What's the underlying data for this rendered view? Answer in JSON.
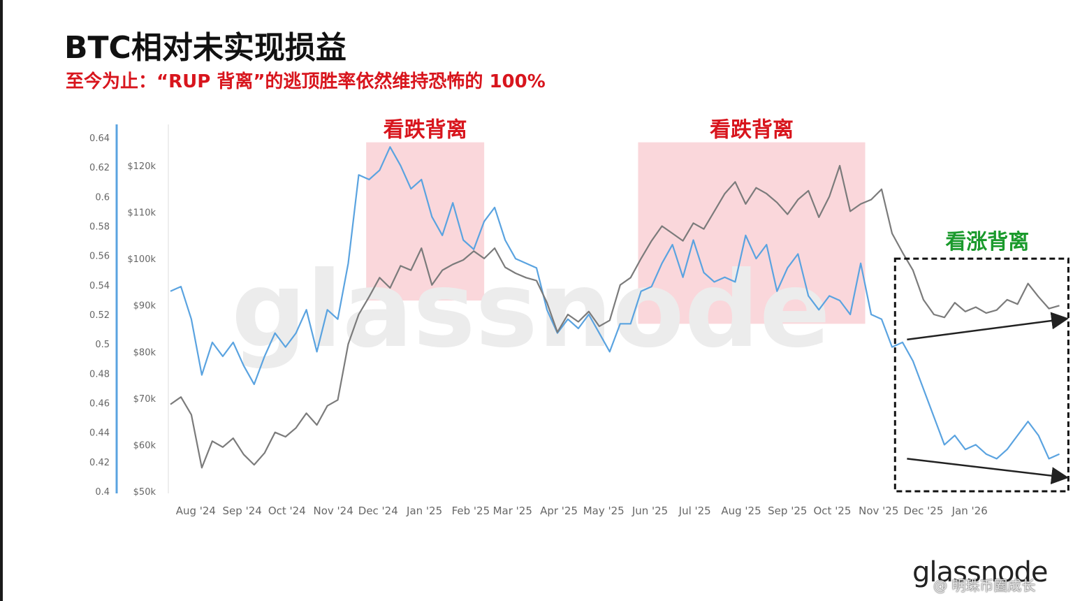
{
  "title": "BTC相对未实现损益",
  "subtitle": "至今为止：“RUP 背离”的逃顶胜率依然维持恐怖的 100%",
  "watermark": "glassnode",
  "brand": "glassnode",
  "credit": "@ 明珠币圈成长",
  "colors": {
    "price_line": "#5aa3e0",
    "rup_line": "#7b7b7b",
    "bear_zone": "#f8c9cf",
    "annotation_red": "#d8151d",
    "annotation_green": "#1a9a2c",
    "axis_accent": "#5aa3e0"
  },
  "chart_data": {
    "type": "line",
    "title": "BTC相对未实现损益",
    "x": [
      "Aug '24",
      "Sep '24",
      "Oct '24",
      "Nov '24",
      "Dec '24",
      "Jan '25",
      "Feb '25",
      "Mar '25",
      "Apr '25",
      "May '25",
      "Jun '25",
      "Jul '25",
      "Aug '25",
      "Sep '25",
      "Oct '25",
      "Nov '25",
      "Dec '25",
      "Jan '26"
    ],
    "y_left": {
      "ticks": [
        "0.64",
        "0.62",
        "0.6",
        "0.58",
        "0.56",
        "0.54",
        "0.52",
        "0.5",
        "0.48",
        "0.46",
        "0.44",
        "0.42",
        "0.4"
      ],
      "ylim": [
        0.4,
        0.64
      ]
    },
    "y_right": {
      "ticks": [
        "$120k",
        "$110k",
        "$100k",
        "$90k",
        "$80k",
        "$70k",
        "$60k",
        "$50k"
      ],
      "ylim": [
        50000,
        126000
      ]
    },
    "series": [
      {
        "color": "#5aa3e0",
        "axis": "price",
        "points": [
          [
            "2024-07-15",
            93000
          ],
          [
            "2024-07-22",
            94000
          ],
          [
            "2024-07-29",
            87000
          ],
          [
            "2024-08-05",
            75000
          ],
          [
            "2024-08-12",
            82000
          ],
          [
            "2024-08-19",
            79000
          ],
          [
            "2024-08-26",
            82000
          ],
          [
            "2024-09-02",
            77000
          ],
          [
            "2024-09-09",
            73000
          ],
          [
            "2024-09-16",
            79000
          ],
          [
            "2024-09-23",
            84000
          ],
          [
            "2024-09-30",
            81000
          ],
          [
            "2024-10-07",
            84000
          ],
          [
            "2024-10-14",
            89000
          ],
          [
            "2024-10-21",
            80000
          ],
          [
            "2024-10-28",
            89000
          ],
          [
            "2024-11-04",
            87000
          ],
          [
            "2024-11-11",
            99000
          ],
          [
            "2024-11-18",
            118000
          ],
          [
            "2024-11-25",
            117000
          ],
          [
            "2024-12-02",
            119000
          ],
          [
            "2024-12-09",
            124000
          ],
          [
            "2024-12-16",
            120000
          ],
          [
            "2024-12-23",
            115000
          ],
          [
            "2024-12-30",
            117000
          ],
          [
            "2025-01-06",
            109000
          ],
          [
            "2025-01-13",
            105000
          ],
          [
            "2025-01-20",
            112000
          ],
          [
            "2025-01-27",
            104000
          ],
          [
            "2025-02-03",
            102000
          ],
          [
            "2025-02-10",
            108000
          ],
          [
            "2025-02-17",
            111000
          ],
          [
            "2025-02-24",
            104000
          ],
          [
            "2025-03-03",
            100000
          ],
          [
            "2025-03-10",
            99000
          ],
          [
            "2025-03-17",
            98000
          ],
          [
            "2025-03-24",
            89000
          ],
          [
            "2025-03-31",
            84000
          ],
          [
            "2025-04-07",
            87000
          ],
          [
            "2025-04-14",
            85000
          ],
          [
            "2025-04-21",
            88000
          ],
          [
            "2025-04-28",
            84000
          ],
          [
            "2025-05-05",
            80000
          ],
          [
            "2025-05-12",
            86000
          ],
          [
            "2025-05-19",
            86000
          ],
          [
            "2025-05-26",
            93000
          ],
          [
            "2025-06-02",
            94000
          ],
          [
            "2025-06-09",
            99000
          ],
          [
            "2025-06-16",
            103000
          ],
          [
            "2025-06-23",
            96000
          ],
          [
            "2025-06-30",
            104000
          ],
          [
            "2025-07-07",
            97000
          ],
          [
            "2025-07-14",
            95000
          ],
          [
            "2025-07-21",
            96000
          ],
          [
            "2025-07-28",
            95000
          ],
          [
            "2025-08-04",
            105000
          ],
          [
            "2025-08-11",
            100000
          ],
          [
            "2025-08-18",
            103000
          ],
          [
            "2025-08-25",
            93000
          ],
          [
            "2025-09-01",
            98000
          ],
          [
            "2025-09-08",
            101000
          ],
          [
            "2025-09-15",
            92000
          ],
          [
            "2025-09-22",
            89000
          ],
          [
            "2025-09-29",
            92000
          ],
          [
            "2025-10-06",
            91000
          ],
          [
            "2025-10-13",
            88000
          ],
          [
            "2025-10-20",
            99000
          ],
          [
            "2025-10-27",
            88000
          ],
          [
            "2025-11-03",
            87000
          ],
          [
            "2025-11-10",
            81000
          ],
          [
            "2025-11-17",
            82000
          ],
          [
            "2025-11-24",
            78000
          ],
          [
            "2025-12-01",
            72000
          ],
          [
            "2025-12-08",
            66000
          ],
          [
            "2025-12-15",
            60000
          ],
          [
            "2025-12-22",
            62000
          ],
          [
            "2025-12-29",
            59000
          ],
          [
            "2026-01-05",
            60000
          ],
          [
            "2026-01-12",
            58000
          ],
          [
            "2026-01-19",
            57000
          ],
          [
            "2026-01-26",
            59000
          ],
          [
            "2026-02-02",
            62000
          ],
          [
            "2026-02-09",
            65000
          ],
          [
            "2026-02-16",
            62000
          ],
          [
            "2026-02-23",
            57000
          ],
          [
            "2026-03-02",
            58000
          ]
        ]
      },
      {
        "color": "#7b7b7b",
        "axis": "rup",
        "points": [
          [
            "2024-07-15",
            0.459
          ],
          [
            "2024-07-22",
            0.464
          ],
          [
            "2024-07-29",
            0.452
          ],
          [
            "2024-08-05",
            0.416
          ],
          [
            "2024-08-12",
            0.434
          ],
          [
            "2024-08-19",
            0.43
          ],
          [
            "2024-08-26",
            0.436
          ],
          [
            "2024-09-02",
            0.425
          ],
          [
            "2024-09-09",
            0.418
          ],
          [
            "2024-09-16",
            0.426
          ],
          [
            "2024-09-23",
            0.44
          ],
          [
            "2024-09-30",
            0.437
          ],
          [
            "2024-10-07",
            0.443
          ],
          [
            "2024-10-14",
            0.453
          ],
          [
            "2024-10-21",
            0.445
          ],
          [
            "2024-10-28",
            0.458
          ],
          [
            "2024-11-04",
            0.462
          ],
          [
            "2024-11-11",
            0.5
          ],
          [
            "2024-11-18",
            0.52
          ],
          [
            "2024-11-25",
            0.532
          ],
          [
            "2024-12-02",
            0.545
          ],
          [
            "2024-12-09",
            0.538
          ],
          [
            "2024-12-16",
            0.553
          ],
          [
            "2024-12-23",
            0.55
          ],
          [
            "2024-12-30",
            0.565
          ],
          [
            "2025-01-06",
            0.54
          ],
          [
            "2025-01-13",
            0.55
          ],
          [
            "2025-01-20",
            0.554
          ],
          [
            "2025-01-27",
            0.557
          ],
          [
            "2025-02-03",
            0.563
          ],
          [
            "2025-02-10",
            0.558
          ],
          [
            "2025-02-17",
            0.565
          ],
          [
            "2025-02-24",
            0.552
          ],
          [
            "2025-03-03",
            0.548
          ],
          [
            "2025-03-10",
            0.545
          ],
          [
            "2025-03-17",
            0.543
          ],
          [
            "2025-03-24",
            0.528
          ],
          [
            "2025-03-31",
            0.508
          ],
          [
            "2025-04-07",
            0.52
          ],
          [
            "2025-04-14",
            0.515
          ],
          [
            "2025-04-21",
            0.522
          ],
          [
            "2025-04-28",
            0.512
          ],
          [
            "2025-05-05",
            0.516
          ],
          [
            "2025-05-12",
            0.54
          ],
          [
            "2025-05-19",
            0.545
          ],
          [
            "2025-05-26",
            0.558
          ],
          [
            "2025-06-02",
            0.57
          ],
          [
            "2025-06-09",
            0.58
          ],
          [
            "2025-06-16",
            0.575
          ],
          [
            "2025-06-23",
            0.57
          ],
          [
            "2025-06-30",
            0.582
          ],
          [
            "2025-07-07",
            0.578
          ],
          [
            "2025-07-14",
            0.59
          ],
          [
            "2025-07-21",
            0.602
          ],
          [
            "2025-07-28",
            0.61
          ],
          [
            "2025-08-04",
            0.595
          ],
          [
            "2025-08-11",
            0.606
          ],
          [
            "2025-08-18",
            0.602
          ],
          [
            "2025-08-25",
            0.596
          ],
          [
            "2025-09-01",
            0.588
          ],
          [
            "2025-09-08",
            0.598
          ],
          [
            "2025-09-15",
            0.604
          ],
          [
            "2025-09-22",
            0.586
          ],
          [
            "2025-09-29",
            0.6
          ],
          [
            "2025-10-06",
            0.621
          ],
          [
            "2025-10-13",
            0.59
          ],
          [
            "2025-10-20",
            0.595
          ],
          [
            "2025-10-27",
            0.598
          ],
          [
            "2025-11-03",
            0.605
          ],
          [
            "2025-11-10",
            0.575
          ],
          [
            "2025-11-17",
            0.562
          ],
          [
            "2025-11-24",
            0.55
          ],
          [
            "2025-12-01",
            0.53
          ],
          [
            "2025-12-08",
            0.52
          ],
          [
            "2025-12-15",
            0.518
          ],
          [
            "2025-12-22",
            0.528
          ],
          [
            "2025-12-29",
            0.522
          ],
          [
            "2026-01-05",
            0.525
          ],
          [
            "2026-01-12",
            0.521
          ],
          [
            "2026-01-19",
            0.523
          ],
          [
            "2026-01-26",
            0.53
          ],
          [
            "2026-02-02",
            0.527
          ],
          [
            "2026-02-09",
            0.541
          ],
          [
            "2026-02-16",
            0.532
          ],
          [
            "2026-02-23",
            0.524
          ],
          [
            "2026-03-02",
            0.526
          ]
        ]
      }
    ],
    "annotations": [
      {
        "text": "看跌背离",
        "type": "shaded-zone",
        "color": "#d8151d",
        "from": "2024-11-23",
        "to": "2025-02-10",
        "y_from": 91000,
        "y_to": 125000
      },
      {
        "text": "看跌背离",
        "type": "shaded-zone",
        "color": "#d8151d",
        "from": "2025-05-24",
        "to": "2025-10-23",
        "y_from": 86000,
        "y_to": 125000
      },
      {
        "text": "看涨背离",
        "type": "dashed-box",
        "color": "#1a9a2c",
        "from": "2025-11-12",
        "to": "2026-03-08",
        "y_from": 50000,
        "y_to": 100000
      }
    ]
  }
}
